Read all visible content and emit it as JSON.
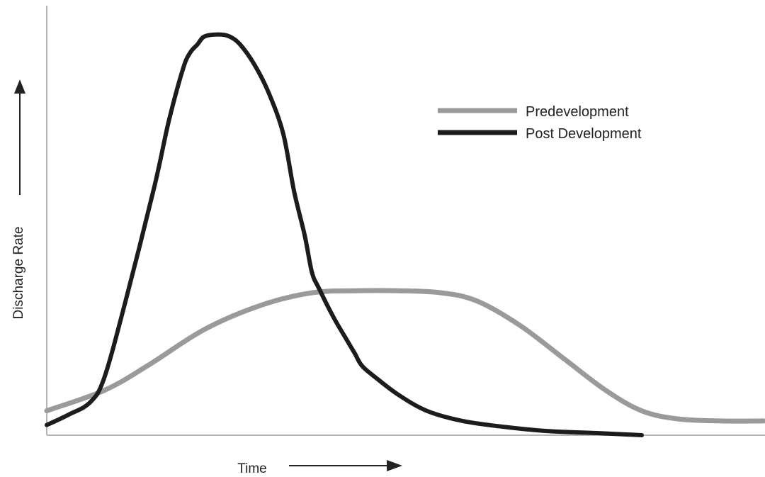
{
  "chart_data": {
    "type": "line",
    "xlabel": "Time",
    "ylabel": "Discharge Rate",
    "xlim": [
      0,
      100
    ],
    "ylim": [
      0,
      100
    ],
    "legend_position": "top-right",
    "grid": false,
    "series": [
      {
        "name": "Predevelopment",
        "color": "#9a9a9a",
        "x": [
          0,
          8,
          14,
          22,
          30,
          37,
          43,
          49,
          55,
          60,
          66,
          72,
          78,
          83,
          88,
          94,
          100
        ],
        "y": [
          6,
          11,
          17,
          26,
          32,
          35,
          35.5,
          35.5,
          35,
          33,
          27,
          19,
          11,
          6,
          4,
          3.5,
          3.5
        ]
      },
      {
        "name": "Post Development",
        "color": "#1c1c1c",
        "x": [
          0,
          3,
          6,
          8,
          11,
          15,
          17,
          19,
          20,
          21,
          22,
          24,
          25.5,
          27,
          29,
          31,
          33,
          34.5,
          36,
          37,
          38,
          40,
          42,
          43,
          44,
          46,
          49,
          53,
          58,
          64,
          70,
          77,
          83
        ],
        "y": [
          2.5,
          5,
          8,
          14,
          33,
          61,
          77,
          90,
          94,
          96,
          98,
          98.5,
          98,
          96,
          91,
          84,
          74,
          60,
          49,
          40,
          36,
          29,
          23,
          20,
          17,
          14,
          10,
          6,
          3.5,
          2,
          1,
          0.5,
          0
        ]
      }
    ]
  }
}
